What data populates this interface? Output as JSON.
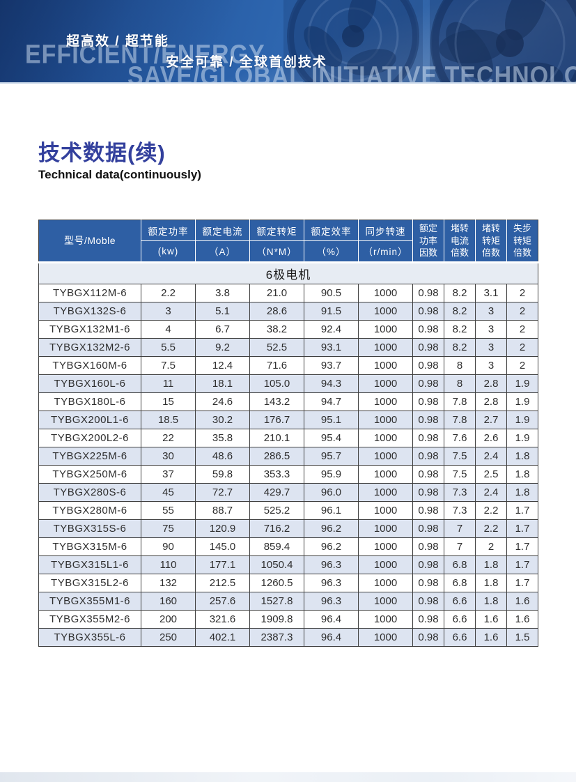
{
  "banner": {
    "slogan_cn_1": "超高效 / 超节能",
    "slogan_cn_2": "安全可靠 / 全球首创技术",
    "watermark_1": "EFFICIENT/ENERGY",
    "watermark_2": "SAVE/GLOBAL INITIATIVE TECHNOLOGY"
  },
  "page": {
    "title_cn": "技术数据(续)",
    "title_en": "Technical data(continuously)"
  },
  "table": {
    "model_header": "型号/Moble",
    "column_groups": [
      {
        "label": "额定功率",
        "unit": "(kw)"
      },
      {
        "label": "额定电流",
        "unit": "（A）"
      },
      {
        "label": "额定转矩",
        "unit": "（N*M）"
      },
      {
        "label": "额定效率",
        "unit": "（%）"
      },
      {
        "label": "同步转速",
        "unit": "（r/min）"
      }
    ],
    "narrow_headers": [
      "额定\n功率\n因数",
      "堵转\n电流\n倍数",
      "堵转\n转矩\n倍数",
      "失步\n转矩\n倍数"
    ],
    "group_label": "6极电机",
    "rows": [
      [
        "TYBGX112M-6",
        "2.2",
        "3.8",
        "21.0",
        "90.5",
        "1000",
        "0.98",
        "8.2",
        "3.1",
        "2"
      ],
      [
        "TYBGX132S-6",
        "3",
        "5.1",
        "28.6",
        "91.5",
        "1000",
        "0.98",
        "8.2",
        "3",
        "2"
      ],
      [
        "TYBGX132M1-6",
        "4",
        "6.7",
        "38.2",
        "92.4",
        "1000",
        "0.98",
        "8.2",
        "3",
        "2"
      ],
      [
        "TYBGX132M2-6",
        "5.5",
        "9.2",
        "52.5",
        "93.1",
        "1000",
        "0.98",
        "8.2",
        "3",
        "2"
      ],
      [
        "TYBGX160M-6",
        "7.5",
        "12.4",
        "71.6",
        "93.7",
        "1000",
        "0.98",
        "8",
        "3",
        "2"
      ],
      [
        "TYBGX160L-6",
        "11",
        "18.1",
        "105.0",
        "94.3",
        "1000",
        "0.98",
        "8",
        "2.8",
        "1.9"
      ],
      [
        "TYBGX180L-6",
        "15",
        "24.6",
        "143.2",
        "94.7",
        "1000",
        "0.98",
        "7.8",
        "2.8",
        "1.9"
      ],
      [
        "TYBGX200L1-6",
        "18.5",
        "30.2",
        "176.7",
        "95.1",
        "1000",
        "0.98",
        "7.8",
        "2.7",
        "1.9"
      ],
      [
        "TYBGX200L2-6",
        "22",
        "35.8",
        "210.1",
        "95.4",
        "1000",
        "0.98",
        "7.6",
        "2.6",
        "1.9"
      ],
      [
        "TYBGX225M-6",
        "30",
        "48.6",
        "286.5",
        "95.7",
        "1000",
        "0.98",
        "7.5",
        "2.4",
        "1.8"
      ],
      [
        "TYBGX250M-6",
        "37",
        "59.8",
        "353.3",
        "95.9",
        "1000",
        "0.98",
        "7.5",
        "2.5",
        "1.8"
      ],
      [
        "TYBGX280S-6",
        "45",
        "72.7",
        "429.7",
        "96.0",
        "1000",
        "0.98",
        "7.3",
        "2.4",
        "1.8"
      ],
      [
        "TYBGX280M-6",
        "55",
        "88.7",
        "525.2",
        "96.1",
        "1000",
        "0.98",
        "7.3",
        "2.2",
        "1.7"
      ],
      [
        "TYBGX315S-6",
        "75",
        "120.9",
        "716.2",
        "96.2",
        "1000",
        "0.98",
        "7",
        "2.2",
        "1.7"
      ],
      [
        "TYBGX315M-6",
        "90",
        "145.0",
        "859.4",
        "96.2",
        "1000",
        "0.98",
        "7",
        "2",
        "1.7"
      ],
      [
        "TYBGX315L1-6",
        "110",
        "177.1",
        "1050.4",
        "96.3",
        "1000",
        "0.98",
        "6.8",
        "1.8",
        "1.7"
      ],
      [
        "TYBGX315L2-6",
        "132",
        "212.5",
        "1260.5",
        "96.3",
        "1000",
        "0.98",
        "6.8",
        "1.8",
        "1.7"
      ],
      [
        "TYBGX355M1-6",
        "160",
        "257.6",
        "1527.8",
        "96.3",
        "1000",
        "0.98",
        "6.6",
        "1.8",
        "1.6"
      ],
      [
        "TYBGX355M2-6",
        "200",
        "321.6",
        "1909.8",
        "96.4",
        "1000",
        "0.98",
        "6.6",
        "1.6",
        "1.6"
      ],
      [
        "TYBGX355L-6",
        "250",
        "402.1",
        "2387.3",
        "96.4",
        "1000",
        "0.98",
        "6.6",
        "1.6",
        "1.5"
      ]
    ]
  },
  "colors": {
    "banner_blue": "#2c64ad",
    "banner_blue_dark": "#1d4b92",
    "header_bg": "#2e5fa4",
    "stripe_bg": "#dde4f1",
    "group_row_bg": "#e7ecf3",
    "title_blue": "#33409d",
    "border_dark": "#3f3f3f"
  }
}
